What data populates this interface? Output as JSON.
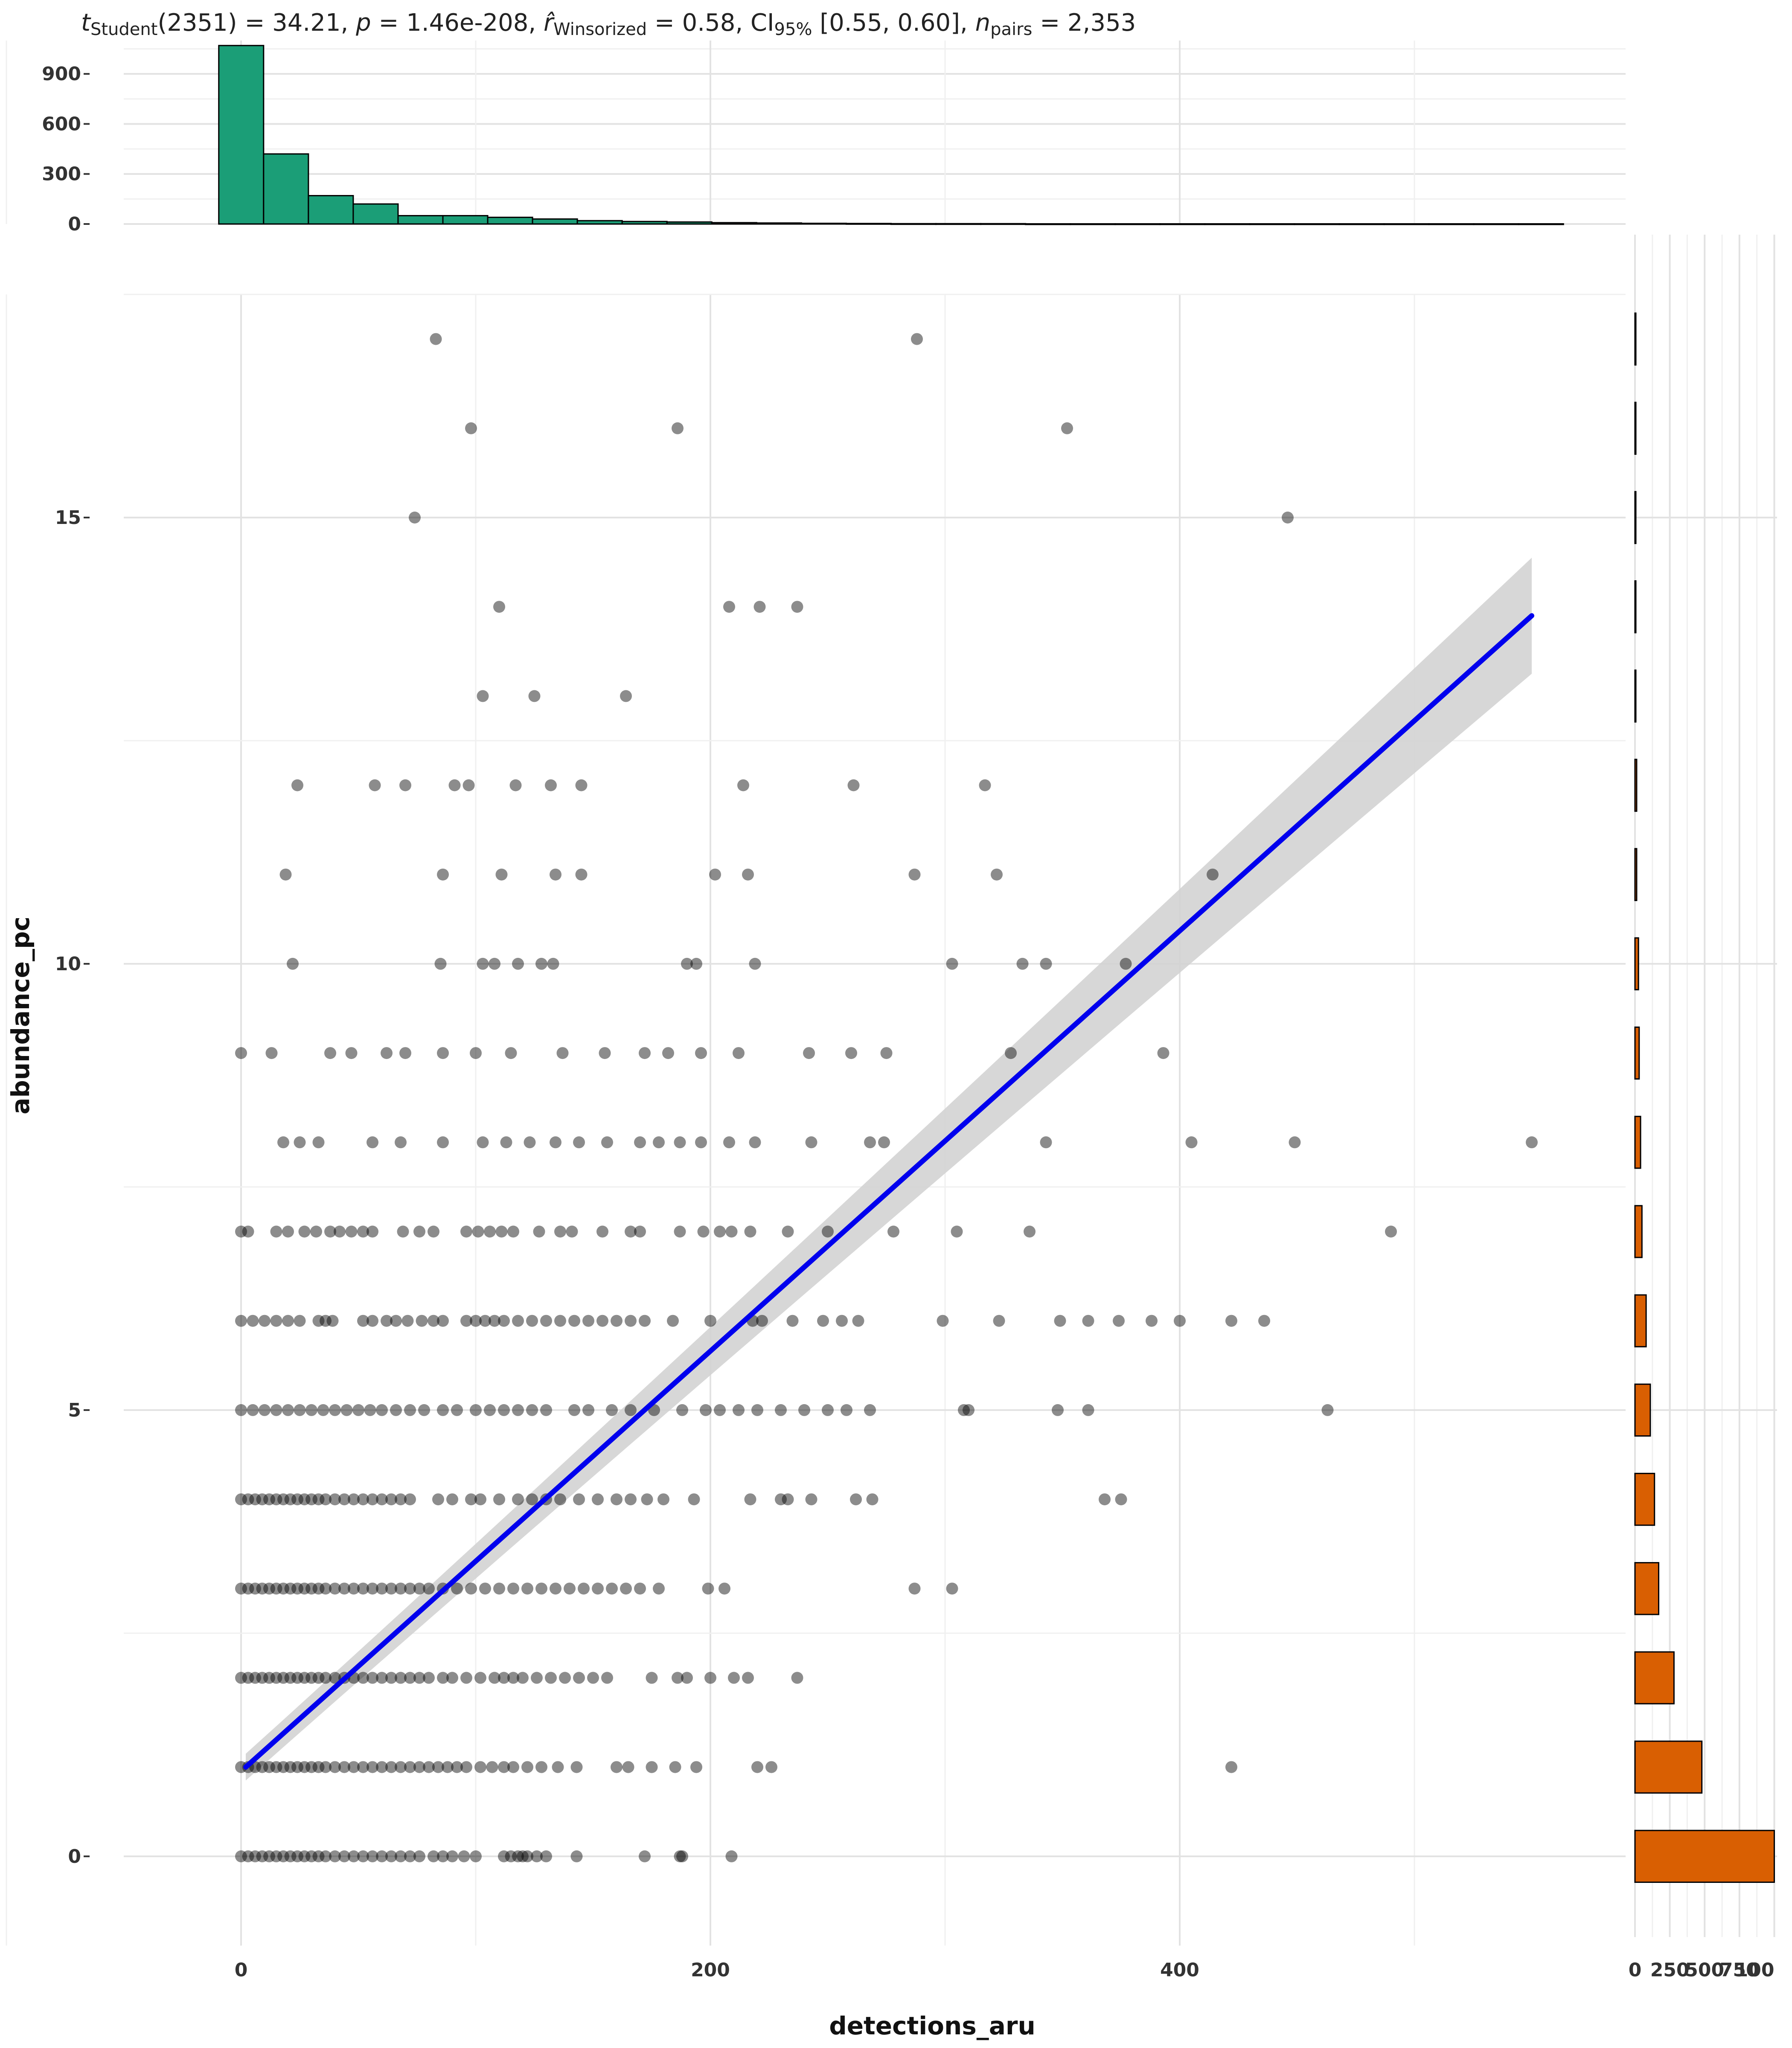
{
  "chart_data": {
    "type": "scatter",
    "subtitle": {
      "t_label": "t",
      "t_sub": "Student",
      "t_df": "(2351) = 34.21,",
      "p_label": "p",
      "p_value": "= 1.46e-208,",
      "r_label": "r̂",
      "r_sub": "Winsorized",
      "r_value": "= 0.58, CI",
      "ci_sub": "95%",
      "ci_value": "[0.55, 0.60],",
      "n_label": "n",
      "n_sub": "pairs",
      "n_value": "= 2,353"
    },
    "xlabel": "detections_aru",
    "ylabel": "abundance_pc",
    "xlim": [
      -50,
      590
    ],
    "ylim": [
      -1,
      17.5
    ],
    "xticks": [
      "0",
      "200",
      "400"
    ],
    "yticks": [
      "0",
      "5",
      "10",
      "15"
    ],
    "top_hist_ticks": [
      "0",
      "300",
      "600",
      "900"
    ],
    "right_hist_ticks": [
      "0",
      "250",
      "500",
      "750",
      "100"
    ],
    "grid": true,
    "regression": {
      "x0": 2,
      "y0": 1.0,
      "x1": 550,
      "y1": 13.9,
      "band_start": 0.1,
      "band_end": 0.6,
      "color": "#0000EE",
      "band_color": "#D3D3D3"
    },
    "points": [
      [
        0,
        0
      ],
      [
        3,
        0
      ],
      [
        6,
        0
      ],
      [
        9,
        0
      ],
      [
        12,
        0
      ],
      [
        15,
        0
      ],
      [
        18,
        0
      ],
      [
        21,
        0
      ],
      [
        24,
        0
      ],
      [
        27,
        0
      ],
      [
        30,
        0
      ],
      [
        33,
        0
      ],
      [
        36,
        0
      ],
      [
        40,
        0
      ],
      [
        44,
        0
      ],
      [
        48,
        0
      ],
      [
        52,
        0
      ],
      [
        56,
        0
      ],
      [
        60,
        0
      ],
      [
        64,
        0
      ],
      [
        68,
        0
      ],
      [
        72,
        0
      ],
      [
        76,
        0
      ],
      [
        82,
        0
      ],
      [
        86,
        0
      ],
      [
        90,
        0
      ],
      [
        95,
        0
      ],
      [
        100,
        0
      ],
      [
        112,
        0
      ],
      [
        115,
        0
      ],
      [
        118,
        0
      ],
      [
        120,
        0
      ],
      [
        122,
        0
      ],
      [
        126,
        0
      ],
      [
        130,
        0
      ],
      [
        143,
        0
      ],
      [
        172,
        0
      ],
      [
        187,
        0
      ],
      [
        188,
        0
      ],
      [
        209,
        0
      ],
      [
        0,
        1
      ],
      [
        3,
        1
      ],
      [
        6,
        1
      ],
      [
        9,
        1
      ],
      [
        12,
        1
      ],
      [
        15,
        1
      ],
      [
        18,
        1
      ],
      [
        21,
        1
      ],
      [
        24,
        1
      ],
      [
        27,
        1
      ],
      [
        30,
        1
      ],
      [
        33,
        1
      ],
      [
        36,
        1
      ],
      [
        40,
        1
      ],
      [
        44,
        1
      ],
      [
        48,
        1
      ],
      [
        52,
        1
      ],
      [
        56,
        1
      ],
      [
        60,
        1
      ],
      [
        64,
        1
      ],
      [
        68,
        1
      ],
      [
        72,
        1
      ],
      [
        76,
        1
      ],
      [
        80,
        1
      ],
      [
        84,
        1
      ],
      [
        88,
        1
      ],
      [
        92,
        1
      ],
      [
        96,
        1
      ],
      [
        102,
        1
      ],
      [
        107,
        1
      ],
      [
        112,
        1
      ],
      [
        116,
        1
      ],
      [
        122,
        1
      ],
      [
        128,
        1
      ],
      [
        135,
        1
      ],
      [
        143,
        1
      ],
      [
        160,
        1
      ],
      [
        165,
        1
      ],
      [
        175,
        1
      ],
      [
        185,
        1
      ],
      [
        194,
        1
      ],
      [
        220,
        1
      ],
      [
        226,
        1
      ],
      [
        422,
        1
      ],
      [
        0,
        2
      ],
      [
        3,
        2
      ],
      [
        6,
        2
      ],
      [
        9,
        2
      ],
      [
        12,
        2
      ],
      [
        15,
        2
      ],
      [
        18,
        2
      ],
      [
        21,
        2
      ],
      [
        24,
        2
      ],
      [
        27,
        2
      ],
      [
        30,
        2
      ],
      [
        33,
        2
      ],
      [
        36,
        2
      ],
      [
        40,
        2
      ],
      [
        44,
        2
      ],
      [
        48,
        2
      ],
      [
        52,
        2
      ],
      [
        56,
        2
      ],
      [
        60,
        2
      ],
      [
        64,
        2
      ],
      [
        68,
        2
      ],
      [
        72,
        2
      ],
      [
        76,
        2
      ],
      [
        80,
        2
      ],
      [
        86,
        2
      ],
      [
        90,
        2
      ],
      [
        96,
        2
      ],
      [
        102,
        2
      ],
      [
        108,
        2
      ],
      [
        112,
        2
      ],
      [
        116,
        2
      ],
      [
        120,
        2
      ],
      [
        126,
        2
      ],
      [
        132,
        2
      ],
      [
        138,
        2
      ],
      [
        144,
        2
      ],
      [
        150,
        2
      ],
      [
        156,
        2
      ],
      [
        175,
        2
      ],
      [
        186,
        2
      ],
      [
        190,
        2
      ],
      [
        200,
        2
      ],
      [
        210,
        2
      ],
      [
        216,
        2
      ],
      [
        237,
        2
      ],
      [
        0,
        3
      ],
      [
        3,
        3
      ],
      [
        6,
        3
      ],
      [
        9,
        3
      ],
      [
        12,
        3
      ],
      [
        15,
        3
      ],
      [
        18,
        3
      ],
      [
        21,
        3
      ],
      [
        24,
        3
      ],
      [
        27,
        3
      ],
      [
        30,
        3
      ],
      [
        33,
        3
      ],
      [
        36,
        3
      ],
      [
        40,
        3
      ],
      [
        44,
        3
      ],
      [
        48,
        3
      ],
      [
        52,
        3
      ],
      [
        56,
        3
      ],
      [
        60,
        3
      ],
      [
        64,
        3
      ],
      [
        68,
        3
      ],
      [
        72,
        3
      ],
      [
        76,
        3
      ],
      [
        80,
        3
      ],
      [
        86,
        3
      ],
      [
        92,
        3
      ],
      [
        98,
        3
      ],
      [
        104,
        3
      ],
      [
        110,
        3
      ],
      [
        116,
        3
      ],
      [
        122,
        3
      ],
      [
        128,
        3
      ],
      [
        134,
        3
      ],
      [
        140,
        3
      ],
      [
        146,
        3
      ],
      [
        152,
        3
      ],
      [
        158,
        3
      ],
      [
        164,
        3
      ],
      [
        170,
        3
      ],
      [
        178,
        3
      ],
      [
        199,
        3
      ],
      [
        206,
        3
      ],
      [
        287,
        3
      ],
      [
        303,
        3
      ],
      [
        0,
        4
      ],
      [
        3,
        4
      ],
      [
        6,
        4
      ],
      [
        9,
        4
      ],
      [
        12,
        4
      ],
      [
        15,
        4
      ],
      [
        18,
        4
      ],
      [
        21,
        4
      ],
      [
        24,
        4
      ],
      [
        27,
        4
      ],
      [
        30,
        4
      ],
      [
        33,
        4
      ],
      [
        36,
        4
      ],
      [
        40,
        4
      ],
      [
        44,
        4
      ],
      [
        48,
        4
      ],
      [
        52,
        4
      ],
      [
        56,
        4
      ],
      [
        60,
        4
      ],
      [
        64,
        4
      ],
      [
        68,
        4
      ],
      [
        72,
        4
      ],
      [
        84,
        4
      ],
      [
        90,
        4
      ],
      [
        98,
        4
      ],
      [
        102,
        4
      ],
      [
        110,
        4
      ],
      [
        118,
        4
      ],
      [
        124,
        4
      ],
      [
        130,
        4
      ],
      [
        136,
        4
      ],
      [
        144,
        4
      ],
      [
        152,
        4
      ],
      [
        160,
        4
      ],
      [
        166,
        4
      ],
      [
        173,
        4
      ],
      [
        180,
        4
      ],
      [
        193,
        4
      ],
      [
        217,
        4
      ],
      [
        230,
        4
      ],
      [
        233,
        4
      ],
      [
        243,
        4
      ],
      [
        262,
        4
      ],
      [
        269,
        4
      ],
      [
        368,
        4
      ],
      [
        375,
        4
      ],
      [
        0,
        5
      ],
      [
        5,
        5
      ],
      [
        10,
        5
      ],
      [
        15,
        5
      ],
      [
        20,
        5
      ],
      [
        25,
        5
      ],
      [
        30,
        5
      ],
      [
        35,
        5
      ],
      [
        40,
        5
      ],
      [
        45,
        5
      ],
      [
        50,
        5
      ],
      [
        55,
        5
      ],
      [
        60,
        5
      ],
      [
        66,
        5
      ],
      [
        72,
        5
      ],
      [
        78,
        5
      ],
      [
        86,
        5
      ],
      [
        92,
        5
      ],
      [
        100,
        5
      ],
      [
        106,
        5
      ],
      [
        112,
        5
      ],
      [
        118,
        5
      ],
      [
        124,
        5
      ],
      [
        130,
        5
      ],
      [
        142,
        5
      ],
      [
        148,
        5
      ],
      [
        158,
        5
      ],
      [
        166,
        5
      ],
      [
        176,
        5
      ],
      [
        188,
        5
      ],
      [
        198,
        5
      ],
      [
        204,
        5
      ],
      [
        212,
        5
      ],
      [
        220,
        5
      ],
      [
        230,
        5
      ],
      [
        240,
        5
      ],
      [
        250,
        5
      ],
      [
        258,
        5
      ],
      [
        268,
        5
      ],
      [
        308,
        5
      ],
      [
        310,
        5
      ],
      [
        348,
        5
      ],
      [
        361,
        5
      ],
      [
        463,
        5
      ],
      [
        0,
        6
      ],
      [
        5,
        6
      ],
      [
        10,
        6
      ],
      [
        15,
        6
      ],
      [
        20,
        6
      ],
      [
        25,
        6
      ],
      [
        33,
        6
      ],
      [
        36,
        6
      ],
      [
        39,
        6
      ],
      [
        52,
        6
      ],
      [
        56,
        6
      ],
      [
        62,
        6
      ],
      [
        66,
        6
      ],
      [
        71,
        6
      ],
      [
        77,
        6
      ],
      [
        82,
        6
      ],
      [
        86,
        6
      ],
      [
        96,
        6
      ],
      [
        100,
        6
      ],
      [
        104,
        6
      ],
      [
        108,
        6
      ],
      [
        112,
        6
      ],
      [
        118,
        6
      ],
      [
        124,
        6
      ],
      [
        130,
        6
      ],
      [
        136,
        6
      ],
      [
        142,
        6
      ],
      [
        148,
        6
      ],
      [
        154,
        6
      ],
      [
        160,
        6
      ],
      [
        166,
        6
      ],
      [
        172,
        6
      ],
      [
        184,
        6
      ],
      [
        200,
        6
      ],
      [
        218,
        6
      ],
      [
        222,
        6
      ],
      [
        235,
        6
      ],
      [
        248,
        6
      ],
      [
        256,
        6
      ],
      [
        263,
        6
      ],
      [
        299,
        6
      ],
      [
        323,
        6
      ],
      [
        349,
        6
      ],
      [
        361,
        6
      ],
      [
        374,
        6
      ],
      [
        388,
        6
      ],
      [
        400,
        6
      ],
      [
        422,
        6
      ],
      [
        436,
        6
      ],
      [
        0,
        7
      ],
      [
        3,
        7
      ],
      [
        15,
        7
      ],
      [
        20,
        7
      ],
      [
        27,
        7
      ],
      [
        32,
        7
      ],
      [
        38,
        7
      ],
      [
        42,
        7
      ],
      [
        47,
        7
      ],
      [
        52,
        7
      ],
      [
        56,
        7
      ],
      [
        69,
        7
      ],
      [
        76,
        7
      ],
      [
        82,
        7
      ],
      [
        96,
        7
      ],
      [
        101,
        7
      ],
      [
        106,
        7
      ],
      [
        111,
        7
      ],
      [
        116,
        7
      ],
      [
        127,
        7
      ],
      [
        136,
        7
      ],
      [
        141,
        7
      ],
      [
        154,
        7
      ],
      [
        166,
        7
      ],
      [
        170,
        7
      ],
      [
        187,
        7
      ],
      [
        197,
        7
      ],
      [
        204,
        7
      ],
      [
        209,
        7
      ],
      [
        217,
        7
      ],
      [
        233,
        7
      ],
      [
        250,
        7
      ],
      [
        278,
        7
      ],
      [
        305,
        7
      ],
      [
        336,
        7
      ],
      [
        490,
        7
      ],
      [
        18,
        8
      ],
      [
        25,
        8
      ],
      [
        33,
        8
      ],
      [
        56,
        8
      ],
      [
        68,
        8
      ],
      [
        86,
        8
      ],
      [
        103,
        8
      ],
      [
        113,
        8
      ],
      [
        123,
        8
      ],
      [
        134,
        8
      ],
      [
        144,
        8
      ],
      [
        156,
        8
      ],
      [
        170,
        8
      ],
      [
        178,
        8
      ],
      [
        187,
        8
      ],
      [
        196,
        8
      ],
      [
        208,
        8
      ],
      [
        219,
        8
      ],
      [
        243,
        8
      ],
      [
        268,
        8
      ],
      [
        274,
        8
      ],
      [
        343,
        8
      ],
      [
        405,
        8
      ],
      [
        449,
        8
      ],
      [
        550,
        8
      ],
      [
        0,
        9
      ],
      [
        13,
        9
      ],
      [
        38,
        9
      ],
      [
        47,
        9
      ],
      [
        62,
        9
      ],
      [
        70,
        9
      ],
      [
        86,
        9
      ],
      [
        100,
        9
      ],
      [
        115,
        9
      ],
      [
        137,
        9
      ],
      [
        155,
        9
      ],
      [
        172,
        9
      ],
      [
        182,
        9
      ],
      [
        196,
        9
      ],
      [
        212,
        9
      ],
      [
        242,
        9
      ],
      [
        260,
        9
      ],
      [
        275,
        9
      ],
      [
        328,
        9
      ],
      [
        393,
        9
      ],
      [
        22,
        10
      ],
      [
        85,
        10
      ],
      [
        103,
        10
      ],
      [
        108,
        10
      ],
      [
        118,
        10
      ],
      [
        128,
        10
      ],
      [
        133,
        10
      ],
      [
        190,
        10
      ],
      [
        194,
        10
      ],
      [
        219,
        10
      ],
      [
        303,
        10
      ],
      [
        333,
        10
      ],
      [
        343,
        10
      ],
      [
        377,
        10
      ],
      [
        19,
        11
      ],
      [
        86,
        11
      ],
      [
        111,
        11
      ],
      [
        134,
        11
      ],
      [
        145,
        11
      ],
      [
        202,
        11
      ],
      [
        216,
        11
      ],
      [
        287,
        11
      ],
      [
        322,
        11
      ],
      [
        414,
        11
      ],
      [
        24,
        12
      ],
      [
        57,
        12
      ],
      [
        70,
        12
      ],
      [
        91,
        12
      ],
      [
        97,
        12
      ],
      [
        117,
        12
      ],
      [
        132,
        12
      ],
      [
        145,
        12
      ],
      [
        214,
        12
      ],
      [
        261,
        12
      ],
      [
        317,
        12
      ],
      [
        103,
        13
      ],
      [
        125,
        13
      ],
      [
        164,
        13
      ],
      [
        110,
        14
      ],
      [
        208,
        14
      ],
      [
        221,
        14
      ],
      [
        237,
        14
      ],
      [
        74,
        15
      ],
      [
        446,
        15
      ],
      [
        98,
        16
      ],
      [
        186,
        16
      ],
      [
        352,
        16
      ],
      [
        83,
        17
      ],
      [
        288,
        17
      ]
    ],
    "top_hist": {
      "binwidth": 19.1,
      "start": -9.5,
      "counts": [
        1070,
        420,
        170,
        120,
        50,
        50,
        40,
        30,
        20,
        15,
        12,
        8,
        6,
        4,
        3,
        2,
        2,
        2,
        1,
        1,
        1,
        1,
        1,
        1,
        1,
        1,
        1,
        1,
        1,
        1
      ],
      "ylim": [
        0,
        1100
      ],
      "color": "#1B9E77"
    },
    "right_hist": {
      "levels": [
        0,
        1,
        2,
        3,
        4,
        5,
        6,
        7,
        8,
        9,
        10,
        11,
        12,
        13,
        14,
        15,
        16,
        17
      ],
      "counts": [
        1000,
        480,
        280,
        170,
        140,
        110,
        80,
        50,
        40,
        30,
        25,
        12,
        12,
        3,
        4,
        2,
        3,
        2
      ],
      "xlim": [
        0,
        1020
      ],
      "color": "#D95F02"
    }
  }
}
